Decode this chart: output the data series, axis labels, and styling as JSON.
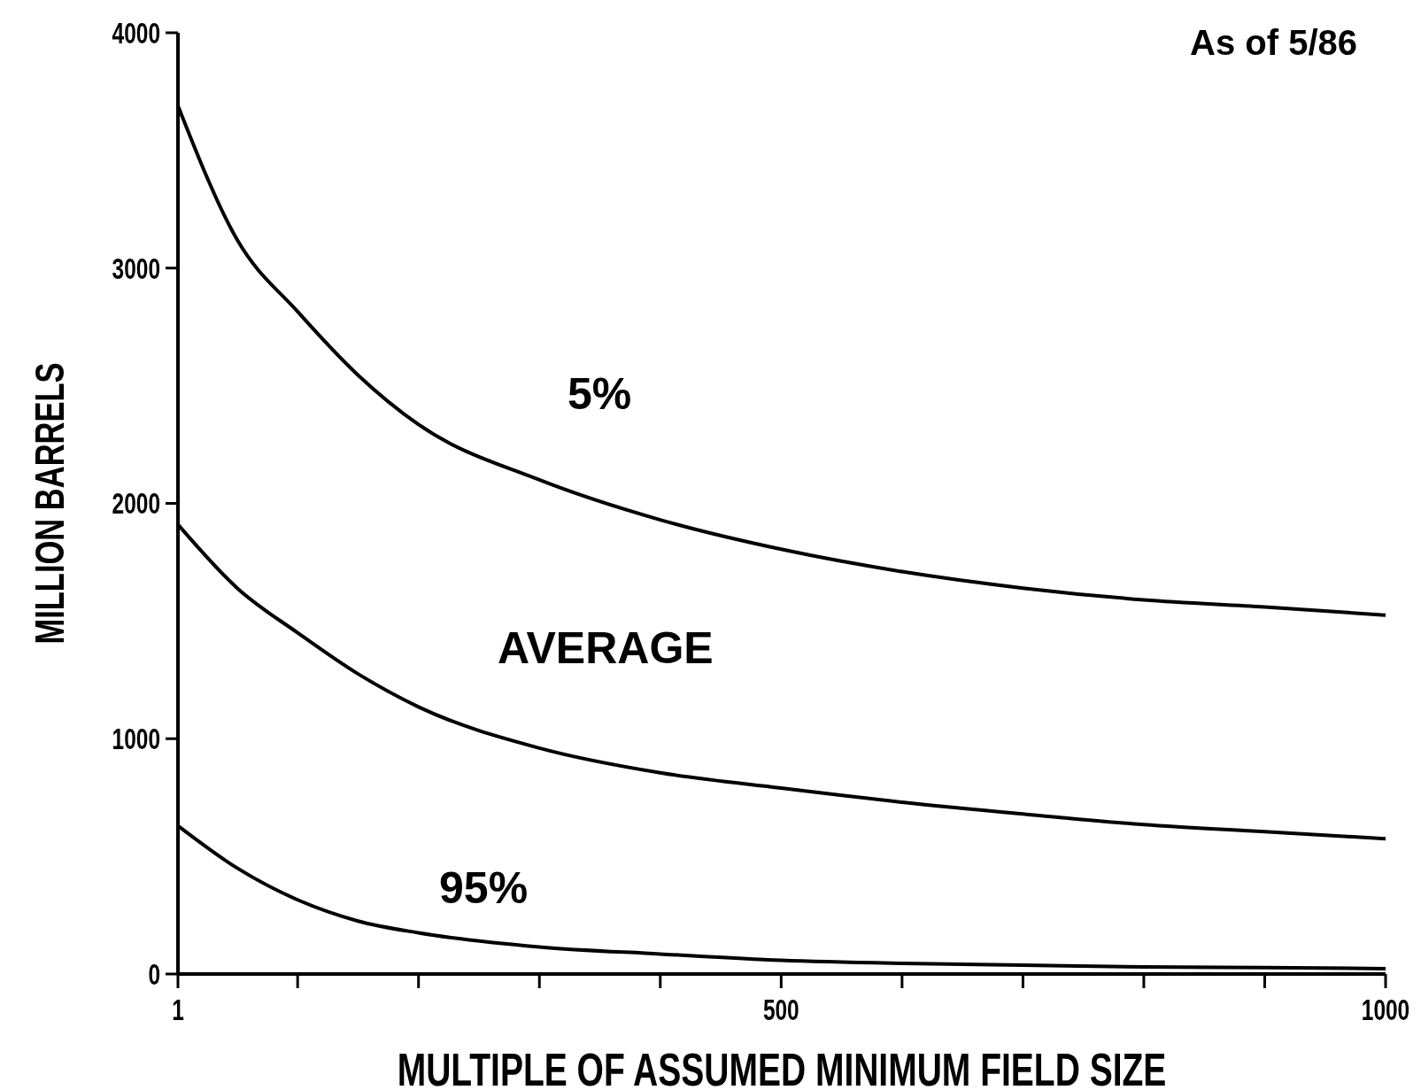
{
  "chart_data": {
    "type": "line",
    "xlabel": "MULTIPLE OF ASSUMED MINIMUM FIELD SIZE",
    "ylabel": "MILLION BARRELS",
    "annotations": [
      "As of 5/86"
    ],
    "x": [
      1,
      50,
      100,
      150,
      200,
      300,
      400,
      500,
      600,
      700,
      800,
      900,
      1000
    ],
    "series": [
      {
        "name": "5%",
        "color": "#000000",
        "values": [
          3690,
          3120,
          2815,
          2545,
          2335,
          2100,
          1930,
          1805,
          1710,
          1640,
          1590,
          1560,
          1525
        ]
      },
      {
        "name": "AVERAGE",
        "color": "#000000",
        "values": [
          1910,
          1640,
          1450,
          1275,
          1135,
          960,
          855,
          790,
          730,
          680,
          635,
          605,
          575
        ]
      },
      {
        "name": "95%",
        "color": "#000000",
        "values": [
          630,
          450,
          315,
          225,
          175,
          115,
          85,
          58,
          45,
          38,
          30,
          27,
          23
        ]
      }
    ],
    "xlim": [
      1,
      1000
    ],
    "ylim": [
      0,
      4000
    ],
    "xticks": [
      1,
      {
        "value": 100,
        "label": null
      },
      {
        "value": 200,
        "label": null
      },
      {
        "value": 300,
        "label": null
      },
      {
        "value": 400,
        "label": null
      },
      500,
      {
        "value": 600,
        "label": null
      },
      {
        "value": 700,
        "label": null
      },
      {
        "value": 800,
        "label": null
      },
      {
        "value": 900,
        "label": null
      },
      1000
    ],
    "yticks": [
      0,
      1000,
      2000,
      3000,
      4000
    ],
    "grid": false,
    "marker": "none",
    "line_style": "solid"
  }
}
